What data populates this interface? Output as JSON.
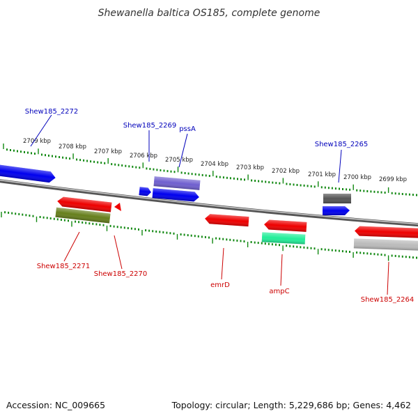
{
  "title": "Shewanella baltica OS185, complete genome",
  "accession": "Accession: NC_009665",
  "topology": "Topology: circular; Length: 5,229,686 bp; Genes: 4,462",
  "colors": {
    "blue_label": "#0000bb",
    "red_label": "#cc0000",
    "tick": "#118811",
    "backbone": "#777777"
  },
  "scale_labels": [
    "2709 kbp",
    "2708 kbp",
    "2707 kbp",
    "2706 kbp",
    "2705 kbp",
    "2704 kbp",
    "2703 kbp",
    "2702 kbp",
    "2701 kbp",
    "2700 kbp",
    "2699 kbp"
  ],
  "genes": [
    {
      "name": "gene-blue-left",
      "color": "#0000ee",
      "label": ""
    },
    {
      "name": "gene-red-2271",
      "color": "#ee0000",
      "label": "Shew185_2271"
    },
    {
      "name": "gene-red-small",
      "color": "#ee0000",
      "label": ""
    },
    {
      "name": "gene-olive-2270",
      "color": "#667f1c",
      "label": "Shew185_2270"
    },
    {
      "name": "gene-blue-2269",
      "color": "#0000ee",
      "label": "Shew185_2269"
    },
    {
      "name": "gene-purple-pssA",
      "color": "#6f5fcf",
      "label": "pssA"
    },
    {
      "name": "gene-blue-pssA-lower",
      "color": "#0000ee",
      "label": ""
    },
    {
      "name": "gene-red-emrD",
      "color": "#ee0000",
      "label": "emrD"
    },
    {
      "name": "gene-red-mid",
      "color": "#ee0000",
      "label": ""
    },
    {
      "name": "gene-teal-ampC",
      "color": "#22ee99",
      "label": "ampC"
    },
    {
      "name": "gene-gray-2265",
      "color": "#555555",
      "label": "Shew185_2265"
    },
    {
      "name": "gene-blue-2265",
      "color": "#0000ee",
      "label": ""
    },
    {
      "name": "gene-red-right",
      "color": "#ee0000",
      "label": ""
    },
    {
      "name": "gene-silver-2264",
      "color": "#bbbbbb",
      "label": "Shew185_2264"
    },
    {
      "name": "gene-2272-label-anchor",
      "color": "#0000ee",
      "label": "Shew185_2272"
    }
  ]
}
